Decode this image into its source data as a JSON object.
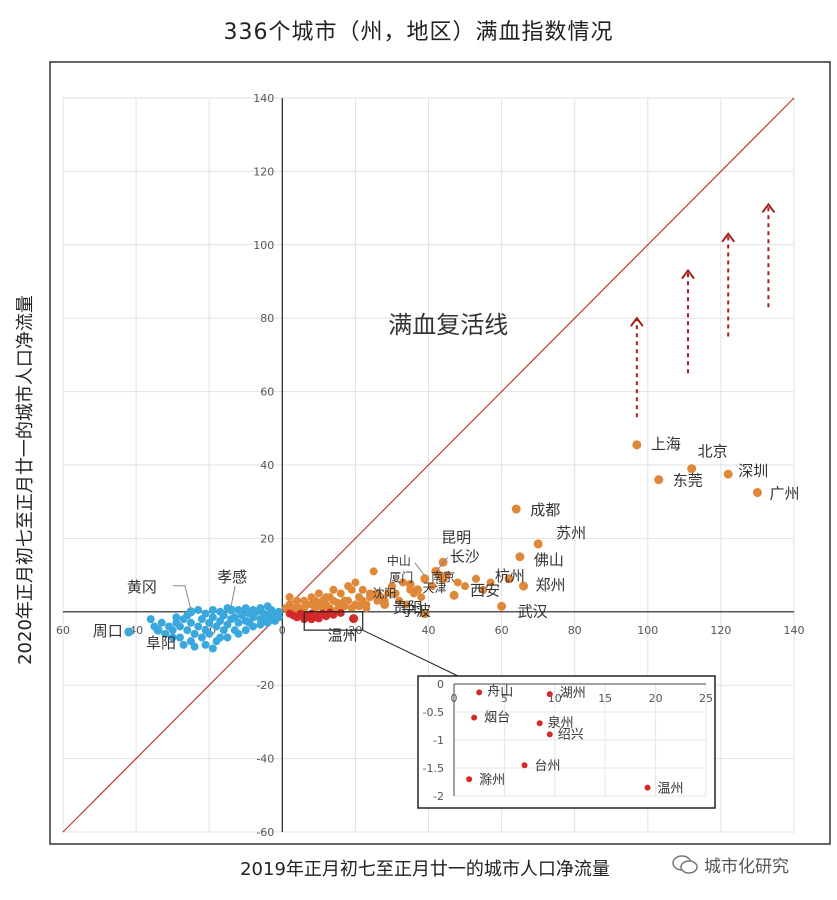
{
  "title": "336个城市（州，地区）满血指数情况",
  "watermark": "城市化研究",
  "chart_data": {
    "type": "scatter",
    "title": "336个城市（州，地区）满血指数情况",
    "xlabel": "2019年正月初七至正月廿一的城市人口净流量",
    "ylabel": "2020年正月初七至正月廿一的城市人口净流量",
    "xlim": [
      -60,
      140
    ],
    "ylim": [
      -60,
      140
    ],
    "xticks": [
      "60",
      "40",
      "20",
      "0",
      "20",
      "40",
      "60",
      "80",
      "100",
      "120",
      "140"
    ],
    "yticks": [
      "140",
      "120",
      "100",
      "80",
      "60",
      "40",
      "20",
      "0",
      "-20",
      "-40",
      "-60"
    ],
    "grid": true,
    "reference_line": {
      "label": "满血复活线",
      "from": [
        -60,
        -60
      ],
      "to": [
        140,
        140
      ],
      "color": "#c0392b"
    },
    "colors": {
      "orange": "#e0883a",
      "blue": "#3aa8dc",
      "red": "#d42a2a"
    },
    "labeled_points": [
      {
        "name": "上海",
        "x": 97,
        "y": 45.5,
        "color": "orange"
      },
      {
        "name": "北京",
        "x": 112,
        "y": 39,
        "color": "orange"
      },
      {
        "name": "深圳",
        "x": 122,
        "y": 37.5,
        "color": "orange"
      },
      {
        "name": "东莞",
        "x": 103,
        "y": 36,
        "color": "orange"
      },
      {
        "name": "广州",
        "x": 130,
        "y": 32.5,
        "color": "orange"
      },
      {
        "name": "成都",
        "x": 64,
        "y": 28,
        "color": "orange"
      },
      {
        "name": "苏州",
        "x": 70,
        "y": 18.5,
        "color": "orange"
      },
      {
        "name": "佛山",
        "x": 65,
        "y": 15,
        "color": "orange"
      },
      {
        "name": "郑州",
        "x": 66,
        "y": 7,
        "color": "orange"
      },
      {
        "name": "杭州",
        "x": 62,
        "y": 9,
        "color": "orange"
      },
      {
        "name": "武汉",
        "x": 60,
        "y": 1.5,
        "color": "orange"
      },
      {
        "name": "西安",
        "x": 47,
        "y": 4.5,
        "color": "orange"
      },
      {
        "name": "南京",
        "x": 44,
        "y": 9,
        "color": "orange"
      },
      {
        "name": "昆明",
        "x": 44,
        "y": 13.5,
        "color": "orange"
      },
      {
        "name": "长沙",
        "x": 42,
        "y": 11,
        "color": "orange"
      },
      {
        "name": "中山",
        "x": 39,
        "y": 9,
        "color": "orange"
      },
      {
        "name": "天津",
        "x": 37,
        "y": 6,
        "color": "orange"
      },
      {
        "name": "厦门",
        "x": 35,
        "y": 7.5,
        "color": "orange"
      },
      {
        "name": "沈阳",
        "x": 26,
        "y": 5,
        "color": "orange"
      },
      {
        "name": "贵阳",
        "x": 28,
        "y": 2,
        "color": "orange"
      },
      {
        "name": "宁波",
        "x": 39,
        "y": -0.5,
        "color": "orange"
      },
      {
        "name": "黄冈",
        "x": -25,
        "y": 0,
        "color": "blue"
      },
      {
        "name": "孝感",
        "x": -14,
        "y": 0.5,
        "color": "blue"
      },
      {
        "name": "周口",
        "x": -42,
        "y": -5.5,
        "color": "blue"
      },
      {
        "name": "阜阳",
        "x": -34,
        "y": -5,
        "color": "blue"
      },
      {
        "name": "温州",
        "x": 19.5,
        "y": -1.85,
        "color": "red"
      }
    ],
    "other_orange_points": [
      [
        1,
        1
      ],
      [
        2,
        2
      ],
      [
        3,
        0.5
      ],
      [
        4,
        1.5
      ],
      [
        5,
        1
      ],
      [
        6,
        3
      ],
      [
        7,
        2
      ],
      [
        8,
        4
      ],
      [
        9,
        3
      ],
      [
        10,
        5
      ],
      [
        11,
        1
      ],
      [
        12,
        2
      ],
      [
        13,
        4
      ],
      [
        14,
        3
      ],
      [
        15,
        2.5
      ],
      [
        16,
        5
      ],
      [
        17,
        3
      ],
      [
        18,
        7
      ],
      [
        19,
        6
      ],
      [
        20,
        8
      ],
      [
        21,
        4
      ],
      [
        22,
        3
      ],
      [
        23,
        2
      ],
      [
        24,
        5
      ],
      [
        25,
        11
      ],
      [
        26,
        3
      ],
      [
        27,
        4
      ],
      [
        29,
        5
      ],
      [
        30,
        7
      ],
      [
        31,
        5
      ],
      [
        33,
        8
      ],
      [
        35,
        6
      ],
      [
        36,
        5
      ],
      [
        38,
        4
      ],
      [
        41,
        7
      ],
      [
        43,
        10
      ],
      [
        45,
        10
      ],
      [
        48,
        8
      ],
      [
        50,
        7
      ],
      [
        53,
        9
      ],
      [
        55,
        6
      ],
      [
        57,
        8
      ],
      [
        2,
        4
      ],
      [
        4,
        3
      ],
      [
        6,
        1
      ],
      [
        8,
        2
      ],
      [
        10,
        2
      ],
      [
        12,
        4
      ],
      [
        14,
        6
      ],
      [
        16,
        2
      ],
      [
        18,
        3
      ],
      [
        20,
        2
      ],
      [
        22,
        6
      ],
      [
        24,
        4
      ],
      [
        9,
        1
      ],
      [
        11,
        3
      ],
      [
        13,
        1
      ],
      [
        15,
        0.5
      ],
      [
        17,
        1.5
      ],
      [
        19,
        1
      ],
      [
        21,
        1.5
      ],
      [
        23,
        1
      ],
      [
        28,
        3
      ],
      [
        32,
        3
      ],
      [
        34,
        2
      ]
    ],
    "other_red_points": [
      [
        3,
        -1
      ],
      [
        4,
        -1.5
      ],
      [
        5,
        -0.5
      ],
      [
        6,
        -2
      ],
      [
        7,
        -1
      ],
      [
        8,
        -0.5
      ],
      [
        9,
        -1.5
      ],
      [
        10,
        -1
      ],
      [
        11,
        -0.5
      ],
      [
        12,
        -1.2
      ],
      [
        14,
        -0.8
      ],
      [
        16,
        -0.3
      ],
      [
        2,
        -0.5
      ],
      [
        8,
        -2
      ],
      [
        10,
        -1.8
      ],
      [
        13,
        -0.2
      ]
    ],
    "other_blue_points": [
      [
        -1,
        0
      ],
      [
        -2,
        -1
      ],
      [
        -3,
        0.5
      ],
      [
        -4,
        -1
      ],
      [
        -5,
        -0.5
      ],
      [
        -6,
        -2
      ],
      [
        -7,
        0
      ],
      [
        -8,
        -1.5
      ],
      [
        -9,
        -0.5
      ],
      [
        -10,
        -2.5
      ],
      [
        -11,
        -1
      ],
      [
        -12,
        -3
      ],
      [
        -13,
        -1.5
      ],
      [
        -14,
        -2
      ],
      [
        -15,
        -3.5
      ],
      [
        -16,
        -1
      ],
      [
        -17,
        -2.5
      ],
      [
        -18,
        -4
      ],
      [
        -19,
        -1.5
      ],
      [
        -20,
        -3
      ],
      [
        -21,
        -5
      ],
      [
        -22,
        -2
      ],
      [
        -23,
        -4
      ],
      [
        -24,
        -6
      ],
      [
        -25,
        -3
      ],
      [
        -26,
        -5
      ],
      [
        -27,
        -2
      ],
      [
        -28,
        -4
      ],
      [
        -29,
        -3
      ],
      [
        -30,
        -5
      ],
      [
        -31,
        -4
      ],
      [
        -32,
        -6
      ],
      [
        -28,
        -7
      ],
      [
        -25,
        -8
      ],
      [
        -22,
        -7
      ],
      [
        -20,
        -6
      ],
      [
        -18,
        -8
      ],
      [
        -16,
        -5
      ],
      [
        -15,
        -7
      ],
      [
        -13,
        -5
      ],
      [
        -12,
        -6
      ],
      [
        -10,
        -5
      ],
      [
        -9,
        -3
      ],
      [
        -8,
        -4
      ],
      [
        -6,
        -3.5
      ],
      [
        -5,
        -2.5
      ],
      [
        -4,
        -3
      ],
      [
        -3,
        -2
      ],
      [
        -2,
        -2.5
      ],
      [
        -1,
        -1.5
      ],
      [
        -12,
        0.5
      ],
      [
        -10,
        1
      ],
      [
        -8,
        0.5
      ],
      [
        -6,
        1
      ],
      [
        -4,
        1.5
      ],
      [
        -19,
        0.5
      ],
      [
        -17,
        0
      ],
      [
        -15,
        1
      ],
      [
        -21,
        -0.5
      ],
      [
        -23,
        0.5
      ],
      [
        -26,
        -1
      ],
      [
        -29,
        -1.5
      ],
      [
        -33,
        -3
      ],
      [
        -35,
        -4
      ],
      [
        -36,
        -2
      ],
      [
        -30,
        -7
      ],
      [
        -27,
        -9
      ],
      [
        -24,
        -9.5
      ],
      [
        -21,
        -9
      ],
      [
        -19,
        -10
      ],
      [
        -17,
        -7
      ]
    ],
    "arrows": [
      [
        97,
        53,
        80
      ],
      [
        111,
        65,
        93
      ],
      [
        122,
        75,
        103
      ],
      [
        133,
        83,
        111
      ]
    ],
    "inset": {
      "xlim": [
        0,
        25
      ],
      "ylim": [
        -2,
        0
      ],
      "xticks": [
        "0",
        "5",
        "10",
        "15",
        "20",
        "25"
      ],
      "yticks": [
        "0",
        "-0.5",
        "-1",
        "-1.5",
        "-2"
      ],
      "points": [
        {
          "name": "舟山",
          "x": 2.5,
          "y": -0.15
        },
        {
          "name": "湖州",
          "x": 9.5,
          "y": -0.18
        },
        {
          "name": "烟台",
          "x": 2,
          "y": -0.6
        },
        {
          "name": "泉州",
          "x": 8.5,
          "y": -0.7
        },
        {
          "name": "绍兴",
          "x": 9.5,
          "y": -0.9
        },
        {
          "name": "台州",
          "x": 7,
          "y": -1.45
        },
        {
          "name": "滁州",
          "x": 1.5,
          "y": -1.7
        },
        {
          "name": "温州",
          "x": 19.2,
          "y": -1.85
        }
      ]
    }
  }
}
